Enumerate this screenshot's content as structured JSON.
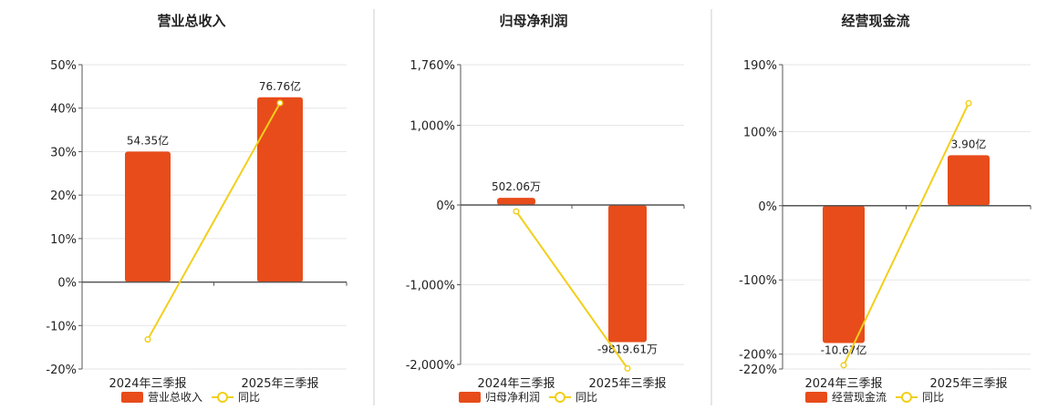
{
  "colors": {
    "bar": "#E84C1A",
    "line": "#F2CF1B",
    "grid": "#e6e6e6",
    "axis": "#555555",
    "divider": "#cccccc"
  },
  "chart_data": [
    {
      "type": "bar",
      "title": "营业总收入",
      "categories": [
        "2024年三季报",
        "2025年三季报"
      ],
      "ylim": [
        -20,
        50
      ],
      "y_ticks": [
        -20,
        -10,
        0,
        10,
        20,
        30,
        40,
        50
      ],
      "y_tick_labels": [
        "-20%",
        "-10%",
        "0%",
        "10%",
        "20%",
        "30%",
        "40%",
        "50%"
      ],
      "series": [
        {
          "name": "营业总收入",
          "type": "bar",
          "values": [
            30.0,
            42.5
          ],
          "labels": [
            "54.35亿",
            "76.76亿"
          ]
        },
        {
          "name": "同比",
          "type": "line",
          "values": [
            -13.2,
            41.2
          ]
        }
      ],
      "legend": "bottom-center",
      "grid": true
    },
    {
      "type": "bar",
      "title": "归母净利润",
      "categories": [
        "2024年三季报",
        "2025年三季报"
      ],
      "ylim": [
        -2000,
        1760
      ],
      "y_ticks": [
        -2000,
        -1000,
        0,
        1000,
        1760
      ],
      "y_tick_labels": [
        "-2,000%",
        "-1,000%",
        "0%",
        "1,000%",
        "1,760%"
      ],
      "series": [
        {
          "name": "归母净利润",
          "type": "bar",
          "values": [
            90,
            -1720
          ],
          "labels": [
            "502.06万",
            "-9819.61万"
          ]
        },
        {
          "name": "同比",
          "type": "line",
          "values": [
            -80,
            -2050
          ]
        }
      ],
      "legend": "bottom-center",
      "grid": true
    },
    {
      "type": "bar",
      "title": "经营现金流",
      "categories": [
        "2024年三季报",
        "2025年三季报"
      ],
      "ylim": [
        -220,
        190
      ],
      "y_ticks": [
        -220,
        -200,
        -100,
        0,
        100,
        190
      ],
      "y_tick_labels": [
        "-220%",
        "-200%",
        "-100%",
        "0%",
        "100%",
        "190%"
      ],
      "series": [
        {
          "name": "经营现金流",
          "type": "bar",
          "values": [
            -185,
            68
          ],
          "labels": [
            "-10.67亿",
            "3.90亿"
          ]
        },
        {
          "name": "同比",
          "type": "line",
          "values": [
            -215,
            138
          ]
        }
      ],
      "legend": "bottom-center",
      "grid": true
    }
  ]
}
